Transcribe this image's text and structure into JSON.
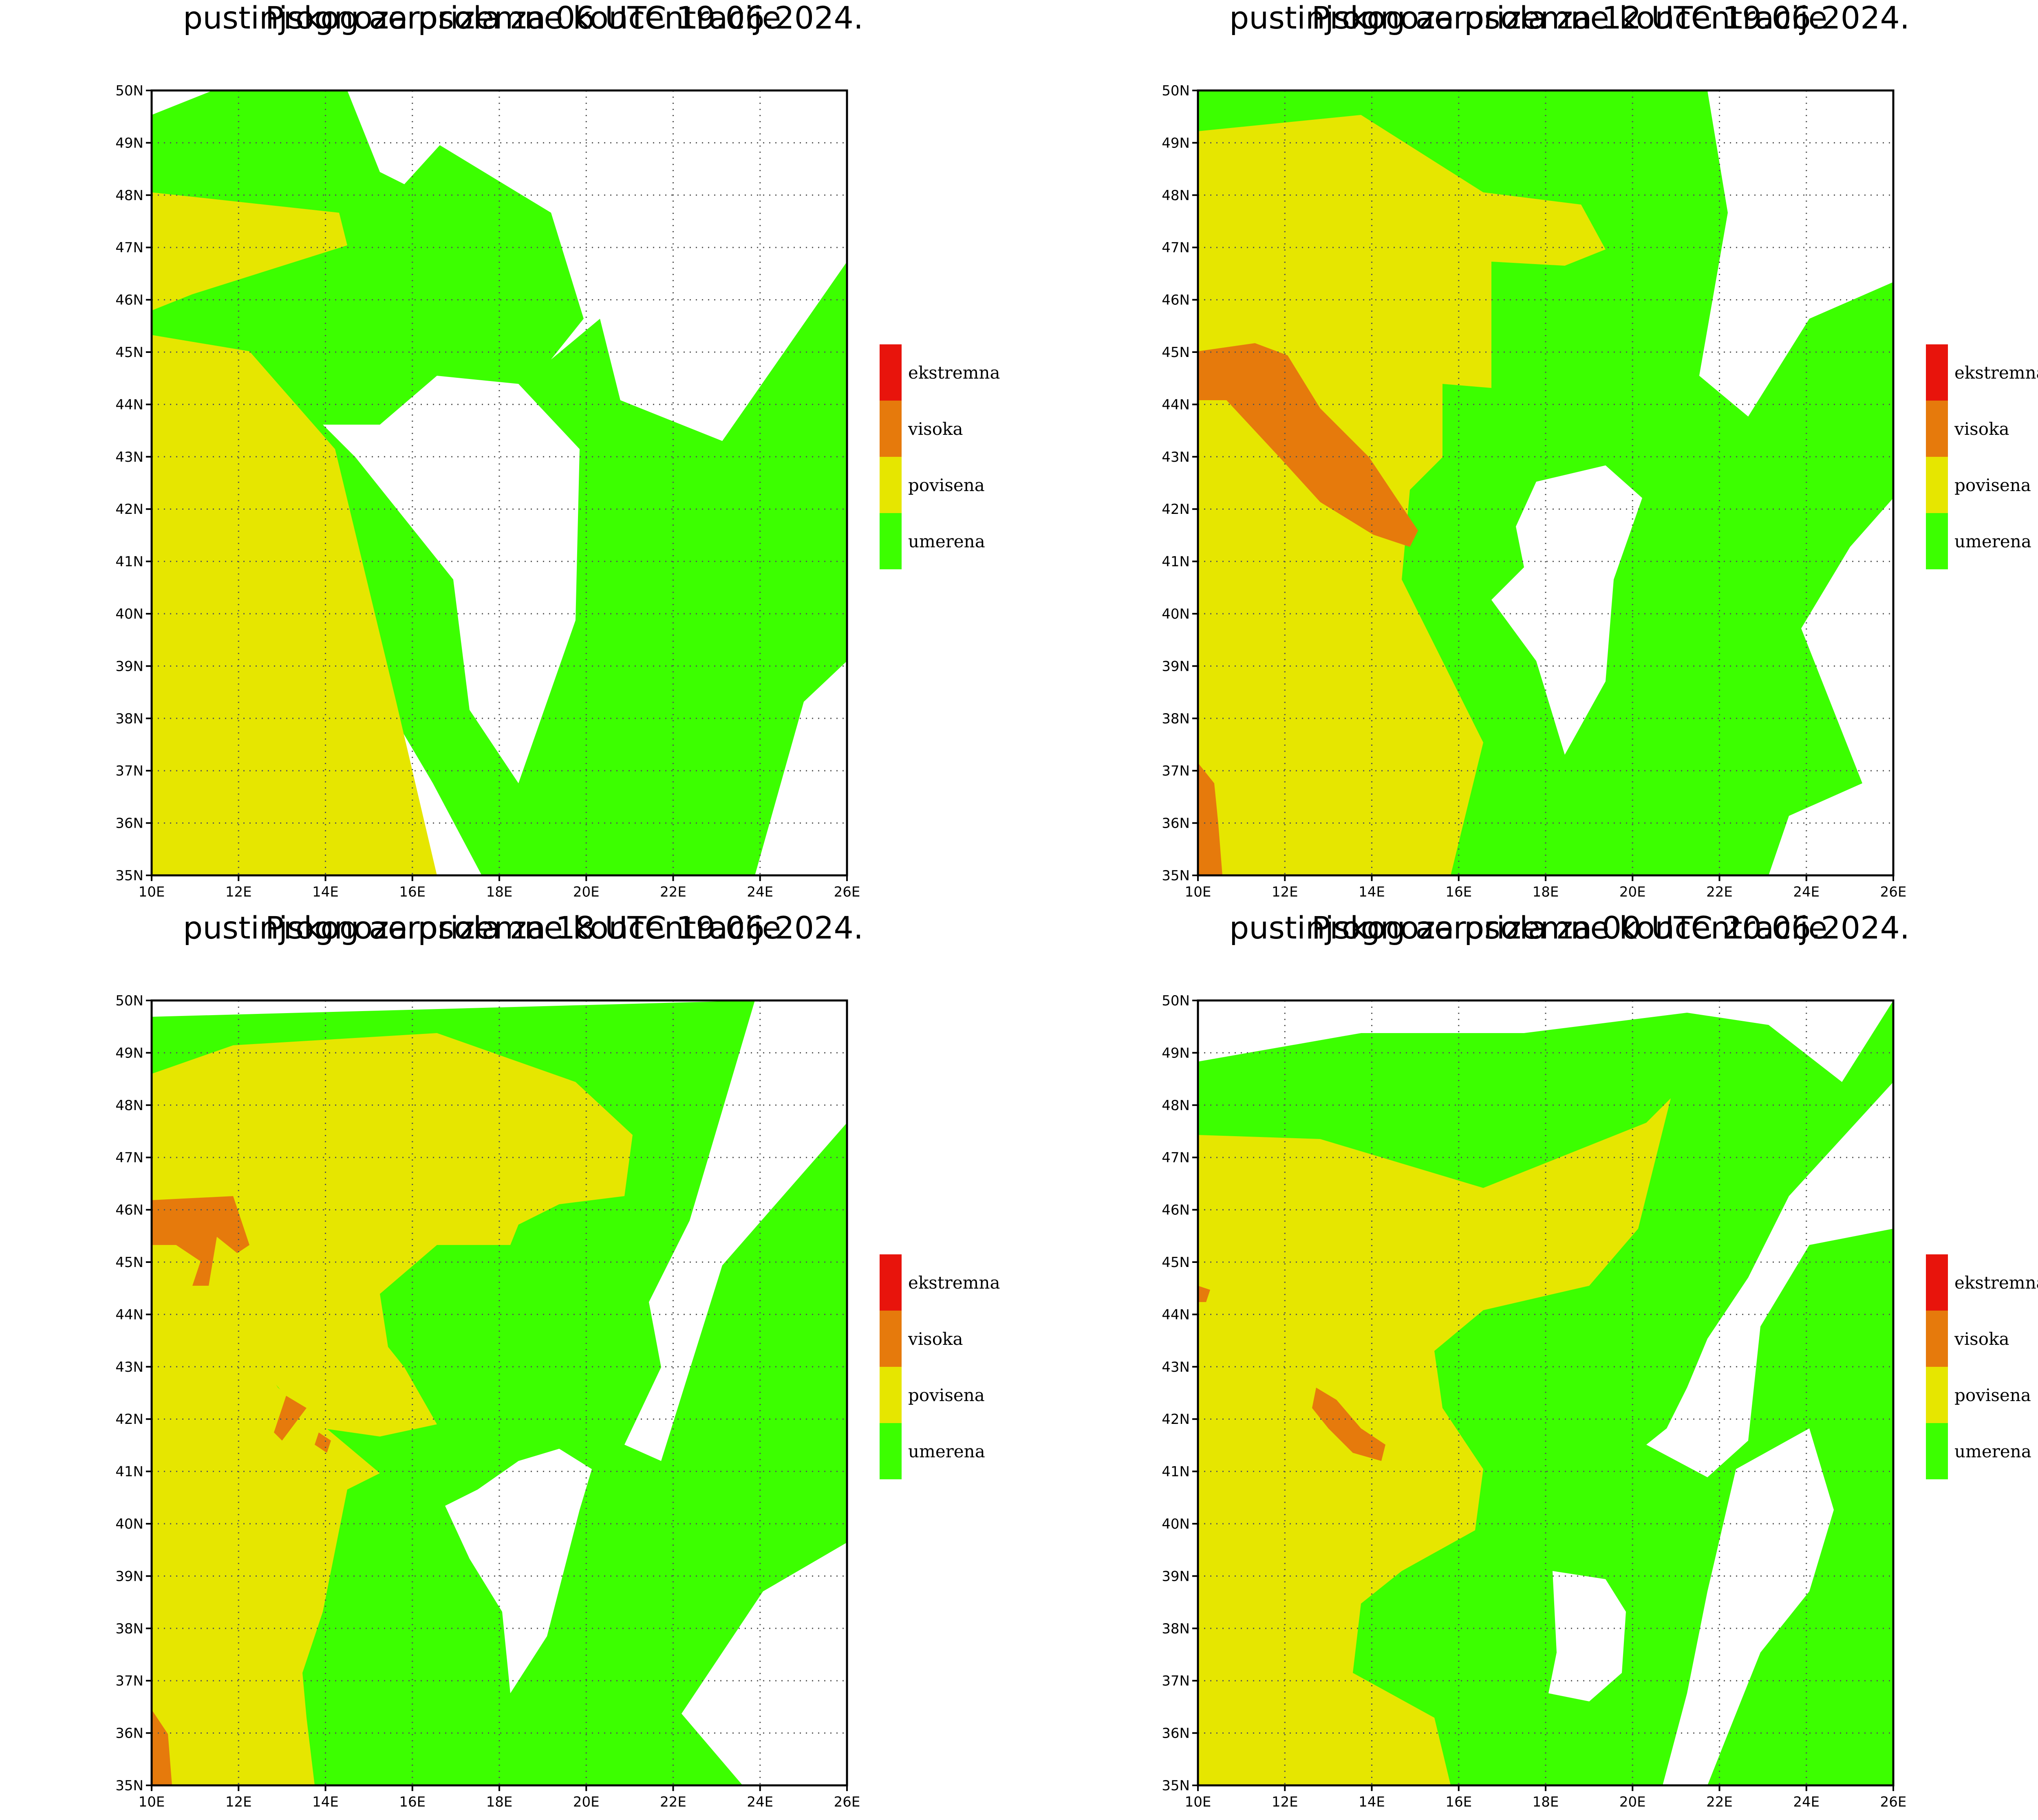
{
  "panels": [
    {
      "title_line1": "Prognoza prizemne koncentracije",
      "title_line2": "pustinjskog aerosola za 06 UTC 19.06.2024."
    },
    {
      "title_line1": "Prognoza prizemne koncentracije",
      "title_line2": "pustinjskog aerosola za 12 UTC 19.06.2024."
    },
    {
      "title_line1": "Prognoza prizemne koncentracije",
      "title_line2": "pustinjskog aerosola za 18 UTC 19.06.2024."
    },
    {
      "title_line1": "Prognoza prizemne koncentracije",
      "title_line2": "pustinjskog aerosola za 00 UTC 20.06.2024."
    }
  ],
  "legend": [
    {
      "label": "ekstremna",
      "color": "#e8140c"
    },
    {
      "label": "visoka",
      "color": "#e67a0c"
    },
    {
      "label": "povisena",
      "color": "#e6e600"
    },
    {
      "label": "umerena",
      "color": "#3cff00"
    }
  ],
  "axes": {
    "x_ticks": [
      "10E",
      "12E",
      "14E",
      "16E",
      "18E",
      "20E",
      "22E",
      "24E",
      "26E"
    ],
    "y_ticks": [
      "35N",
      "36N",
      "37N",
      "38N",
      "39N",
      "40N",
      "41N",
      "42N",
      "43N",
      "44N",
      "45N",
      "46N",
      "47N",
      "48N",
      "49N",
      "50N"
    ]
  }
}
